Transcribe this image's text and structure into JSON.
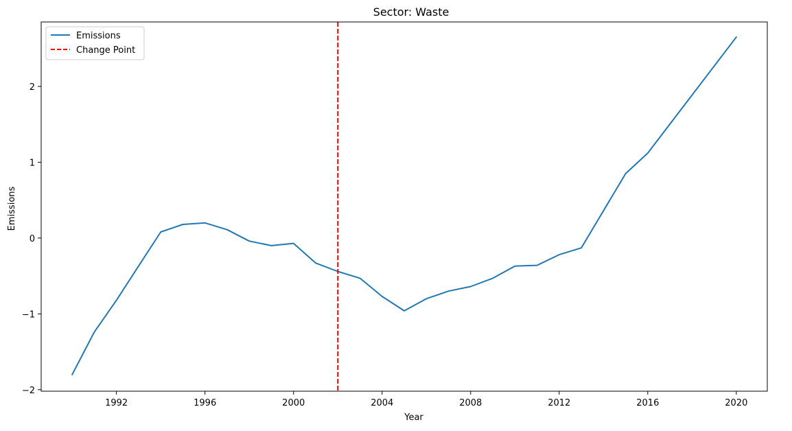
{
  "chart_data": {
    "type": "line",
    "title": "Sector: Waste",
    "xlabel": "Year",
    "ylabel": "Emissions",
    "xlim": [
      1988.6,
      2021.4
    ],
    "ylim": [
      -2.02,
      2.85
    ],
    "xticks": [
      1992,
      1996,
      2000,
      2004,
      2008,
      2012,
      2016,
      2020
    ],
    "yticks": [
      -2,
      -1,
      0,
      1,
      2
    ],
    "ytick_labels": [
      "−2",
      "−1",
      "0",
      "1",
      "2"
    ],
    "grid": false,
    "legend_position": "top-left",
    "series": [
      {
        "name": "Emissions",
        "color": "#1f77b4",
        "style": "solid",
        "x": [
          1990,
          1991,
          1992,
          1993,
          1994,
          1995,
          1996,
          1997,
          1998,
          1999,
          2000,
          2001,
          2002,
          2003,
          2004,
          2005,
          2006,
          2007,
          2008,
          2009,
          2010,
          2011,
          2012,
          2013,
          2015,
          2016,
          2020
        ],
        "y": [
          -1.8,
          -1.24,
          -0.82,
          -0.37,
          0.08,
          0.18,
          0.2,
          0.11,
          -0.04,
          -0.1,
          -0.07,
          -0.33,
          -0.44,
          -0.53,
          -0.77,
          -0.96,
          -0.8,
          -0.7,
          -0.64,
          -0.53,
          -0.37,
          -0.36,
          -0.22,
          -0.13,
          0.85,
          1.12,
          2.65
        ]
      }
    ],
    "vlines": [
      {
        "name": "Change Point",
        "x": 2002,
        "color": "#ff0000",
        "style": "dashed"
      }
    ]
  }
}
